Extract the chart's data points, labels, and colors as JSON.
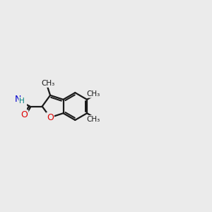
{
  "bg": "#ebebeb",
  "bc": "#1a1a1a",
  "Oc": "#dd0000",
  "Nc": "#0000cc",
  "Sc": "#b8b800",
  "Hc": "#008080",
  "lw": 1.6,
  "figsize": [
    3.0,
    3.0
  ],
  "dpi": 100,
  "xlim": [
    -1.0,
    11.0
  ],
  "ylim": [
    1.5,
    8.5
  ]
}
